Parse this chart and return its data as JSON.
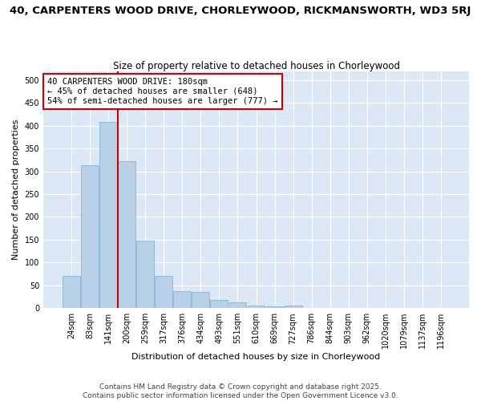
{
  "title": "40, CARPENTERS WOOD DRIVE, CHORLEYWOOD, RICKMANSWORTH, WD3 5RJ",
  "subtitle": "Size of property relative to detached houses in Chorleywood",
  "xlabel": "Distribution of detached houses by size in Chorleywood",
  "ylabel": "Number of detached properties",
  "categories": [
    "24sqm",
    "83sqm",
    "141sqm",
    "200sqm",
    "259sqm",
    "317sqm",
    "376sqm",
    "434sqm",
    "493sqm",
    "551sqm",
    "610sqm",
    "669sqm",
    "727sqm",
    "786sqm",
    "844sqm",
    "903sqm",
    "962sqm",
    "1020sqm",
    "1079sqm",
    "1137sqm",
    "1196sqm"
  ],
  "values": [
    70,
    313,
    409,
    322,
    148,
    70,
    37,
    35,
    18,
    12,
    6,
    4,
    5,
    1,
    0,
    0,
    0,
    0,
    0,
    0,
    1
  ],
  "bar_color": "#b8d0e8",
  "bar_edge_color": "#7aadd4",
  "fig_bg_color": "#ffffff",
  "plot_bg_color": "#dce8f5",
  "grid_color": "#ffffff",
  "vline_color": "#cc0000",
  "vline_xindex": 2.5,
  "annotation_line1": "40 CARPENTERS WOOD DRIVE: 180sqm",
  "annotation_line2": "← 45% of detached houses are smaller (648)",
  "annotation_line3": "54% of semi-detached houses are larger (777) →",
  "annotation_box_color": "#cc0000",
  "footer_text": "Contains HM Land Registry data © Crown copyright and database right 2025.\nContains public sector information licensed under the Open Government Licence v3.0.",
  "ylim": [
    0,
    520
  ],
  "yticks": [
    0,
    50,
    100,
    150,
    200,
    250,
    300,
    350,
    400,
    450,
    500
  ],
  "title_fontsize": 9.5,
  "subtitle_fontsize": 8.5,
  "ylabel_fontsize": 8,
  "xlabel_fontsize": 8,
  "tick_fontsize": 7,
  "annotation_fontsize": 7.5,
  "footer_fontsize": 6.5
}
